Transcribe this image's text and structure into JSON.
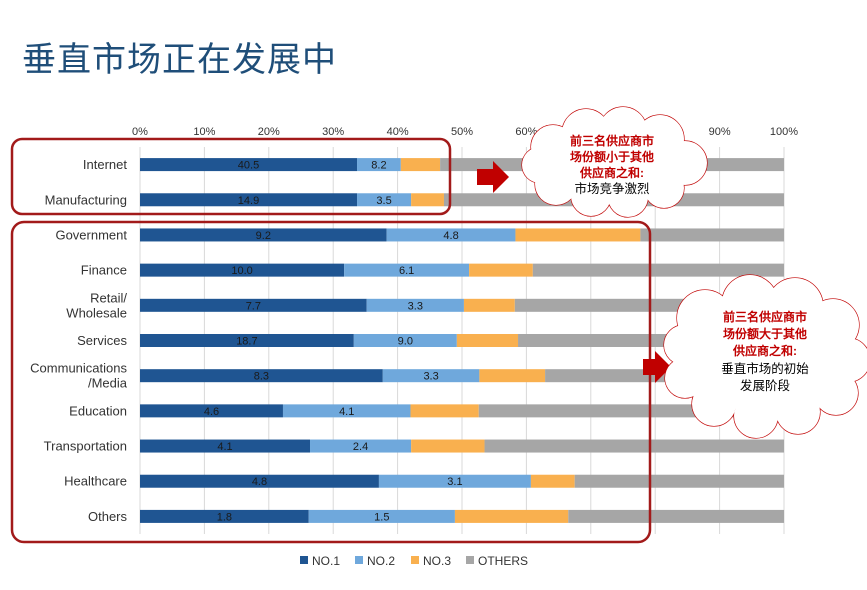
{
  "slide": {
    "title": "垂直市场正在发展中"
  },
  "colors": {
    "no1": "#1f5592",
    "no2": "#6fa8dc",
    "no3": "#f9b04f",
    "others": "#a6a6a6",
    "highlight": "#a21a1a",
    "arrow": "#c00000",
    "title": "#1f4e79"
  },
  "chart_data": {
    "type": "bar",
    "orientation": "horizontal",
    "stacked": "100%",
    "title": "",
    "xlabel": "",
    "ylabel": "",
    "xlim": [
      0,
      100
    ],
    "x_ticks": [
      "0%",
      "10%",
      "20%",
      "30%",
      "40%",
      "50%",
      "60%",
      "70%",
      "80%",
      "90%",
      "100%"
    ],
    "categories": [
      "Internet",
      "Manufacturing",
      "Government",
      "Finance",
      "Retail/ Wholesale",
      "Services",
      "Communications /Media",
      "Education",
      "Transportation",
      "Healthcare",
      "Others"
    ],
    "series": [
      {
        "name": "NO.1",
        "values": [
          33.7,
          33.7,
          38.3,
          31.7,
          35.2,
          33.2,
          37.7,
          22.2,
          26.4,
          37.1,
          26.2
        ],
        "labels": [
          "40.5",
          "14.9",
          "9.2",
          "10.0",
          "7.7",
          "18.7",
          "8.3",
          "4.6",
          "4.1",
          "4.8",
          "1.8"
        ]
      },
      {
        "name": "NO.2",
        "values": [
          6.8,
          8.4,
          20.0,
          19.4,
          15.1,
          16.0,
          15.0,
          19.8,
          15.7,
          23.6,
          22.7
        ],
        "labels": [
          "8.2",
          "3.5",
          "4.8",
          "6.1",
          "3.3",
          "9.0",
          "3.3",
          "4.1",
          "2.4",
          "3.1",
          "1.5"
        ]
      },
      {
        "name": "NO.3",
        "values": [
          6.1,
          5.1,
          19.4,
          9.9,
          7.9,
          9.5,
          10.2,
          10.6,
          11.4,
          6.8,
          17.6
        ]
      },
      {
        "name": "OTHERS",
        "values": [
          53.4,
          52.8,
          22.3,
          39.0,
          41.8,
          41.3,
          37.1,
          47.4,
          46.5,
          32.5,
          33.5
        ]
      }
    ],
    "legend": {
      "position": "bottom",
      "entries": [
        "NO.1",
        "NO.2",
        "NO.3",
        "OTHERS"
      ]
    },
    "grid": true,
    "annotations": [
      {
        "lines_red": [
          "前三名供应商市",
          "场份额小于其他",
          "供应商之和:"
        ],
        "lines_black": [
          "市场竞争激烈"
        ]
      },
      {
        "lines_red": [
          "前三名供应商市",
          "场份额大于其他",
          "供应商之和:"
        ],
        "lines_black": [
          "垂直市场的初始",
          "发展阶段"
        ]
      }
    ]
  }
}
